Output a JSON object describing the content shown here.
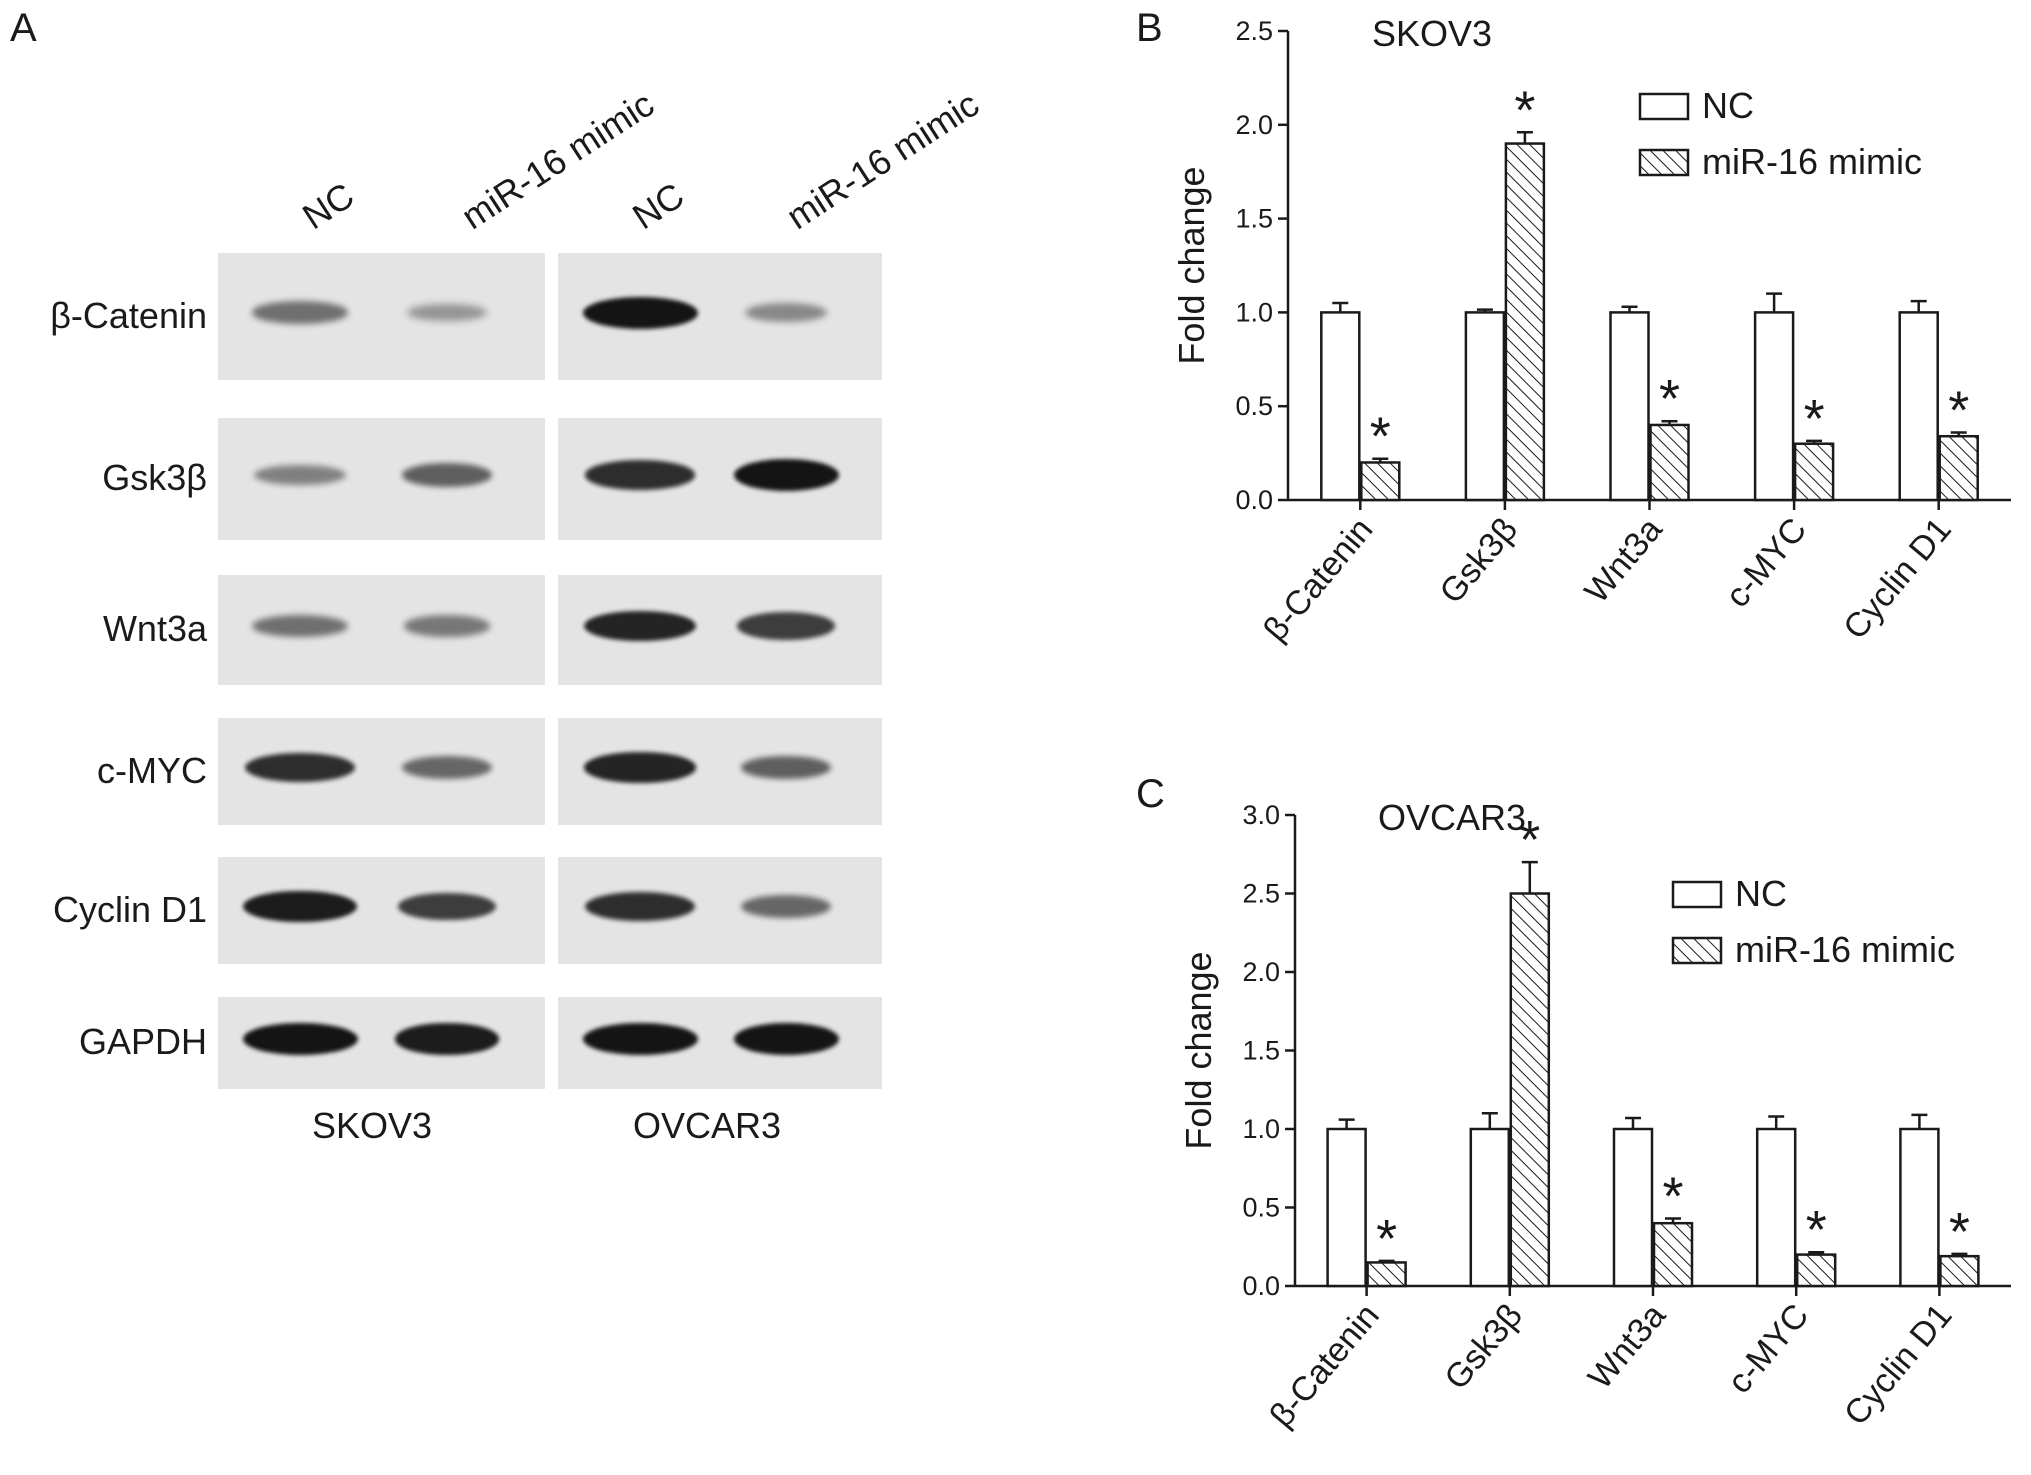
{
  "panels": {
    "a": "A",
    "b": "B",
    "c": "C"
  },
  "blot": {
    "lane_headers": [
      "NC",
      "miR-16 mimic",
      "NC",
      "miR-16 mimic"
    ],
    "proteins": [
      "β-Catenin",
      "Gsk3β",
      "Wnt3a",
      "c-MYC",
      "Cyclin D1",
      "GAPDH"
    ],
    "cell_lines": [
      "SKOV3",
      "OVCAR3"
    ],
    "band_intensity": {
      "SKOV3": [
        [
          0.45,
          0.22
        ],
        [
          0.35,
          0.55
        ],
        [
          0.45,
          0.4
        ],
        [
          0.85,
          0.5
        ],
        [
          0.95,
          0.75
        ],
        [
          1.0,
          0.95
        ]
      ],
      "OVCAR3": [
        [
          1.0,
          0.3
        ],
        [
          0.85,
          1.0
        ],
        [
          0.9,
          0.75
        ],
        [
          0.9,
          0.55
        ],
        [
          0.85,
          0.5
        ],
        [
          1.0,
          1.0
        ]
      ]
    }
  },
  "colors": {
    "nc_fill": "#ffffff",
    "mimic_fill": "#ffffff",
    "stroke": "#1a1a1a",
    "band": "#141414",
    "membrane": "#e4e4e4"
  },
  "chart_data": [
    {
      "type": "bar",
      "title": "SKOV3",
      "ylabel": "Fold change",
      "xlabel": "",
      "categories": [
        "β-Catenin",
        "Gsk3β",
        "Wnt3a",
        "c-MYC",
        "Cyclin D1"
      ],
      "ylim": [
        0,
        2.5
      ],
      "yticks": [
        "0.0",
        "0.5",
        "1.0",
        "1.5",
        "2.0",
        "2.5"
      ],
      "series": [
        {
          "name": "NC",
          "values": [
            1.0,
            1.0,
            1.0,
            1.0,
            1.0
          ],
          "errors": [
            0.05,
            0.015,
            0.03,
            0.1,
            0.06
          ],
          "pattern": "open"
        },
        {
          "name": "miR-16 mimic",
          "values": [
            0.2,
            1.9,
            0.4,
            0.3,
            0.34
          ],
          "errors": [
            0.02,
            0.06,
            0.02,
            0.015,
            0.02
          ],
          "pattern": "hatched",
          "significance": [
            "*",
            "*",
            "*",
            "*",
            "*"
          ]
        }
      ],
      "legend": "top-right"
    },
    {
      "type": "bar",
      "title": "OVCAR3",
      "ylabel": "Fold change",
      "xlabel": "",
      "categories": [
        "β-Catenin",
        "Gsk3β",
        "Wnt3a",
        "c-MYC",
        "Cyclin D1"
      ],
      "ylim": [
        0,
        3.0
      ],
      "yticks": [
        "0.0",
        "0.5",
        "1.0",
        "1.5",
        "2.0",
        "2.5",
        "3.0"
      ],
      "series": [
        {
          "name": "NC",
          "values": [
            1.0,
            1.0,
            1.0,
            1.0,
            1.0
          ],
          "errors": [
            0.06,
            0.1,
            0.07,
            0.08,
            0.09
          ],
          "pattern": "open"
        },
        {
          "name": "miR-16 mimic",
          "values": [
            0.15,
            2.5,
            0.4,
            0.2,
            0.19
          ],
          "errors": [
            0.01,
            0.2,
            0.03,
            0.015,
            0.015
          ],
          "pattern": "hatched",
          "significance": [
            "*",
            "*",
            "*",
            "*",
            "*"
          ]
        }
      ],
      "legend": "top-right"
    }
  ]
}
